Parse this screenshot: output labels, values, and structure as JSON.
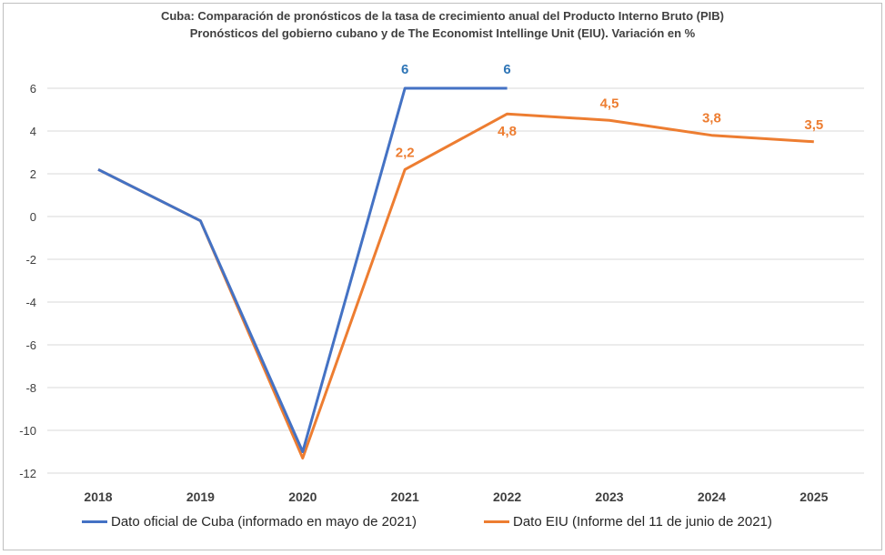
{
  "chart_data": {
    "type": "line",
    "title": "Cuba: Comparación de pronósticos de la tasa de crecimiento anual del  Producto Interno Bruto (PIB)",
    "subtitle": "Pronósticos del gobierno cubano y de The Economist Intellinge Unit (EIU). Variación en %",
    "xlabel": "",
    "ylabel": "",
    "categories": [
      "2018",
      "2019",
      "2020",
      "2021",
      "2022",
      "2023",
      "2024",
      "2025"
    ],
    "ylim": [
      -12,
      6
    ],
    "yticks": [
      "6",
      "4",
      "2",
      "0",
      "-2",
      "-4",
      "-6",
      "-8",
      "-10",
      "-12"
    ],
    "grid": true,
    "legend_position": "bottom",
    "series": [
      {
        "name": "Dato oficial de Cuba (informado en mayo de 2021)",
        "color": "#4472c4",
        "values": [
          2.2,
          -0.2,
          -11.0,
          6,
          6,
          null,
          null,
          null
        ],
        "labels": [
          "",
          "",
          "",
          "6",
          "6",
          "",
          "",
          ""
        ]
      },
      {
        "name": "Dato EIU (Informe del 11 de junio de 2021)",
        "color": "#ed7d31",
        "values": [
          2.2,
          -0.2,
          -11.3,
          2.2,
          4.8,
          4.5,
          3.8,
          3.5
        ],
        "labels": [
          "",
          "",
          "",
          "2,2",
          "4,8",
          "4,5",
          "3,8",
          "3,5"
        ]
      }
    ]
  }
}
